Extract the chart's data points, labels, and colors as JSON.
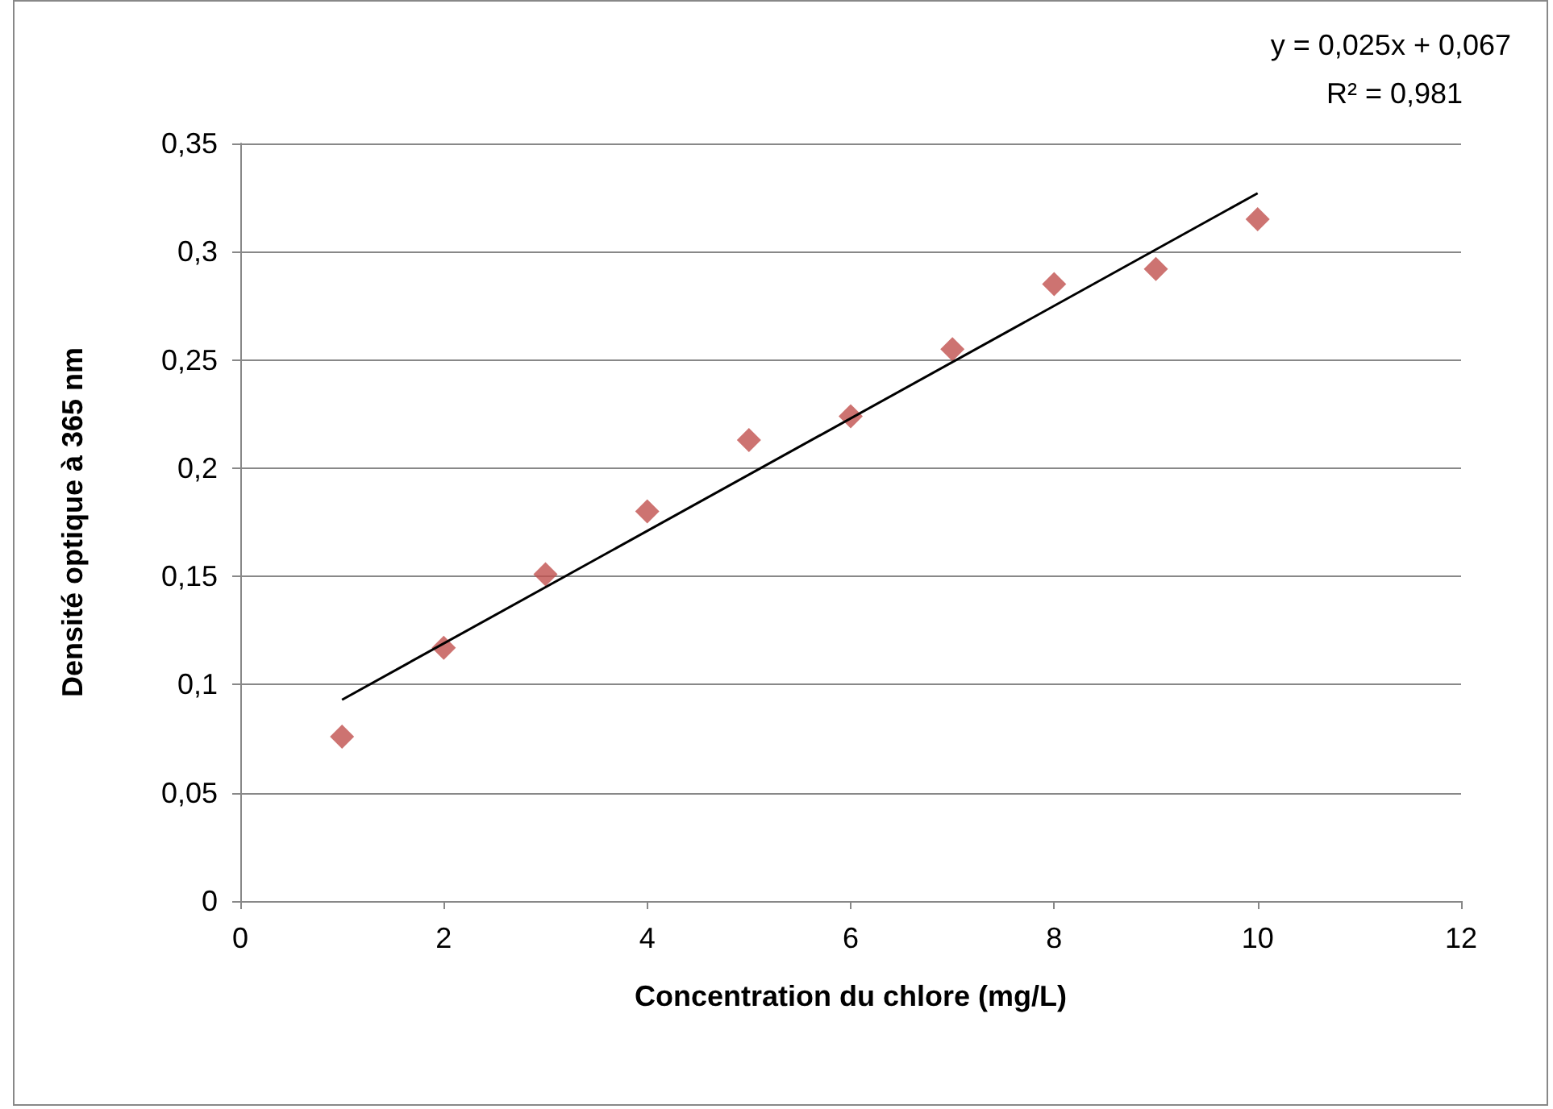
{
  "chart_data": {
    "type": "scatter",
    "xlabel": "Concentration du chlore (mg/L)",
    "ylabel": "Densité optique à 365 nm",
    "annotations": [
      "y = 0,025x + 0,067",
      "R² = 0,981"
    ],
    "series": [
      {
        "color": "#c0504d",
        "marker": "diamond",
        "x": [
          1,
          2,
          3,
          4,
          5,
          6,
          7,
          8,
          9,
          10
        ],
        "values": [
          0.076,
          0.117,
          0.151,
          0.18,
          0.213,
          0.224,
          0.255,
          0.285,
          0.292,
          0.315
        ]
      },
      {
        "type": "line",
        "color": "#000000",
        "marker": "none",
        "line_style": "solid",
        "x": [
          1,
          10
        ],
        "values": [
          0.093,
          0.327
        ]
      }
    ],
    "xlim": [
      0,
      12
    ],
    "xticks": [
      0,
      2,
      4,
      6,
      8,
      10,
      12
    ],
    "ylim": [
      0,
      0.35
    ],
    "yticks": [
      0,
      {
        "value": 0.05,
        "label": "0,05"
      },
      {
        "value": 0.1,
        "label": "0,1"
      },
      {
        "value": 0.15,
        "label": "0,15"
      },
      {
        "value": 0.2,
        "label": "0,2"
      },
      {
        "value": 0.25,
        "label": "0,25"
      },
      {
        "value": 0.3,
        "label": "0,3"
      },
      {
        "value": 0.35,
        "label": "0,35"
      }
    ],
    "grid": "y"
  }
}
